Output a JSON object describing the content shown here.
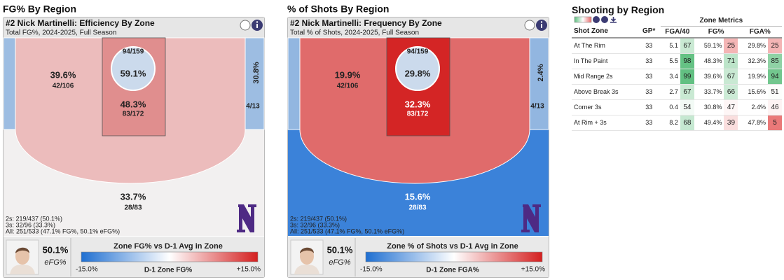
{
  "panels": [
    {
      "section_title": "FG% By Region",
      "card_title": "#2 Nick Martinelli: Efficiency By Zone",
      "card_subtitle": "Total FG%, 2024-2025, Full Season",
      "zones": {
        "mid_range": {
          "pct": "39.6%",
          "made": "42/106"
        },
        "rim": {
          "made": "94/159",
          "pct": "59.1%"
        },
        "paint": {
          "pct": "48.3%",
          "made": "83/172"
        },
        "corner": {
          "pct": "30.8%",
          "made": "4/13"
        },
        "above_break": {
          "pct": "33.7%",
          "made": "28/83"
        }
      },
      "stats": [
        "2s: 219/437 (50.1%)",
        "3s: 32/96 (33.3%)",
        "All: 251/533 (47.1% FG%, 50.1% eFG%)"
      ],
      "efg": "50.1%",
      "efg_label": "eFG%",
      "legend": {
        "title": "Zone FG% vs D-1 Avg in Zone",
        "min": "-15.0%",
        "center": "D-1 Zone FG%",
        "max": "+15.0%"
      }
    },
    {
      "section_title": "% of Shots By Region",
      "card_title": "#2 Nick Martinelli: Frequency By Zone",
      "card_subtitle": "Total % of Shots, 2024-2025, Full Season",
      "zones": {
        "mid_range": {
          "pct": "19.9%",
          "made": "42/106"
        },
        "rim": {
          "made": "94/159",
          "pct": "29.8%"
        },
        "paint": {
          "pct": "32.3%",
          "made": "83/172"
        },
        "corner": {
          "pct": "2.4%",
          "made": "4/13"
        },
        "above_break": {
          "pct": "15.6%",
          "made": "28/83"
        }
      },
      "stats": [
        "2s: 219/437 (50.1%)",
        "3s: 32/96 (33.3%)",
        "All: 251/533 (47.1% FG%, 50.1% eFG%)"
      ],
      "efg": "50.1%",
      "efg_label": "eFG%",
      "legend": {
        "title": "Zone % of Shots vs D-1 Avg in Zone",
        "min": "-15.0%",
        "center": "D-1 Zone FGA%",
        "max": "+15.0%"
      }
    }
  ],
  "table": {
    "title": "Shooting by Region",
    "group_header": "Zone Metrics",
    "columns": [
      "Shot Zone",
      "GP*",
      "FGA/40",
      "FG%",
      "FGA%"
    ],
    "rows": [
      [
        "At The Rim",
        33,
        5.1,
        67,
        "59.1%",
        25,
        "29.8%",
        25
      ],
      [
        "In The Paint",
        33,
        5.5,
        98,
        "48.3%",
        71,
        "32.3%",
        85
      ],
      [
        "Mid Range 2s",
        33,
        3.4,
        99,
        "39.6%",
        67,
        "19.9%",
        94
      ],
      [
        "Above Break 3s",
        33,
        2.7,
        67,
        "33.7%",
        66,
        "15.6%",
        51
      ],
      [
        "Corner 3s",
        33,
        0.4,
        54,
        "30.8%",
        47,
        "2.4%",
        46
      ],
      [
        "At Rim + 3s",
        33,
        8.2,
        68,
        "49.4%",
        39,
        "47.8%",
        5
      ]
    ]
  }
}
